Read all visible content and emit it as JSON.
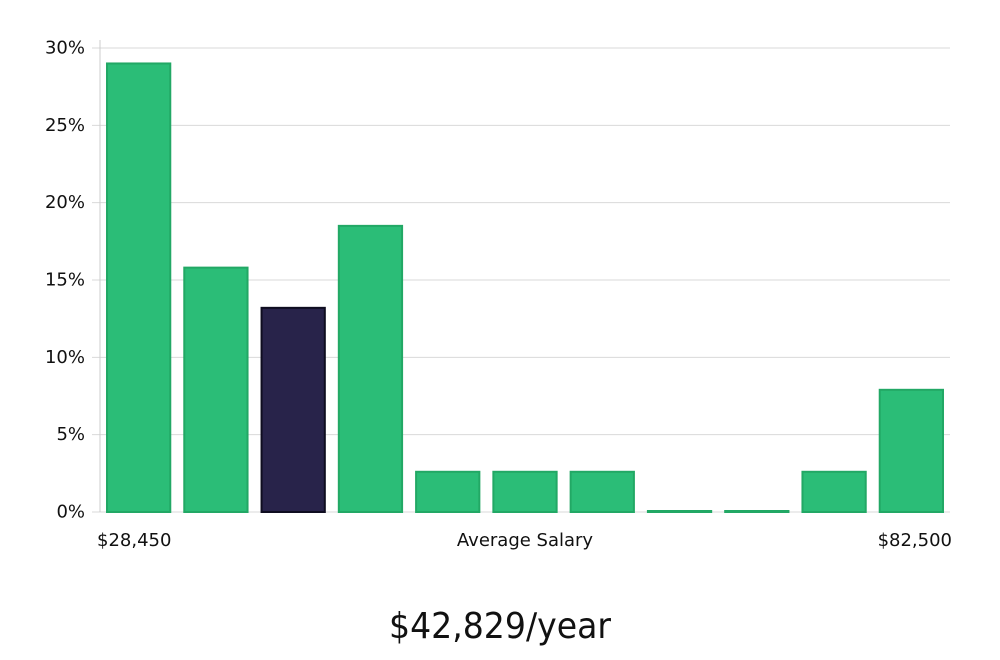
{
  "headline": "$42,829/year",
  "colors": {
    "bar": "#2bbd77",
    "bar_stroke": "#22a865",
    "highlight": "#28234a",
    "highlight_stroke": "#0f0d20"
  },
  "chart_data": {
    "type": "bar",
    "title": "",
    "xlabel": "Average Salary",
    "ylabel": "",
    "x_min_label": "$28,450",
    "x_max_label": "$82,500",
    "ylim": [
      0,
      30
    ],
    "yticks": [
      0,
      5,
      10,
      15,
      20,
      25,
      30
    ],
    "ytick_labels": [
      "0%",
      "5%",
      "10%",
      "15%",
      "20%",
      "25%",
      "30%"
    ],
    "grid": true,
    "values": [
      29,
      15.8,
      13.2,
      18.5,
      2.6,
      2.6,
      2.6,
      0,
      0,
      2.6,
      7.9
    ],
    "highlight_index": 2
  }
}
